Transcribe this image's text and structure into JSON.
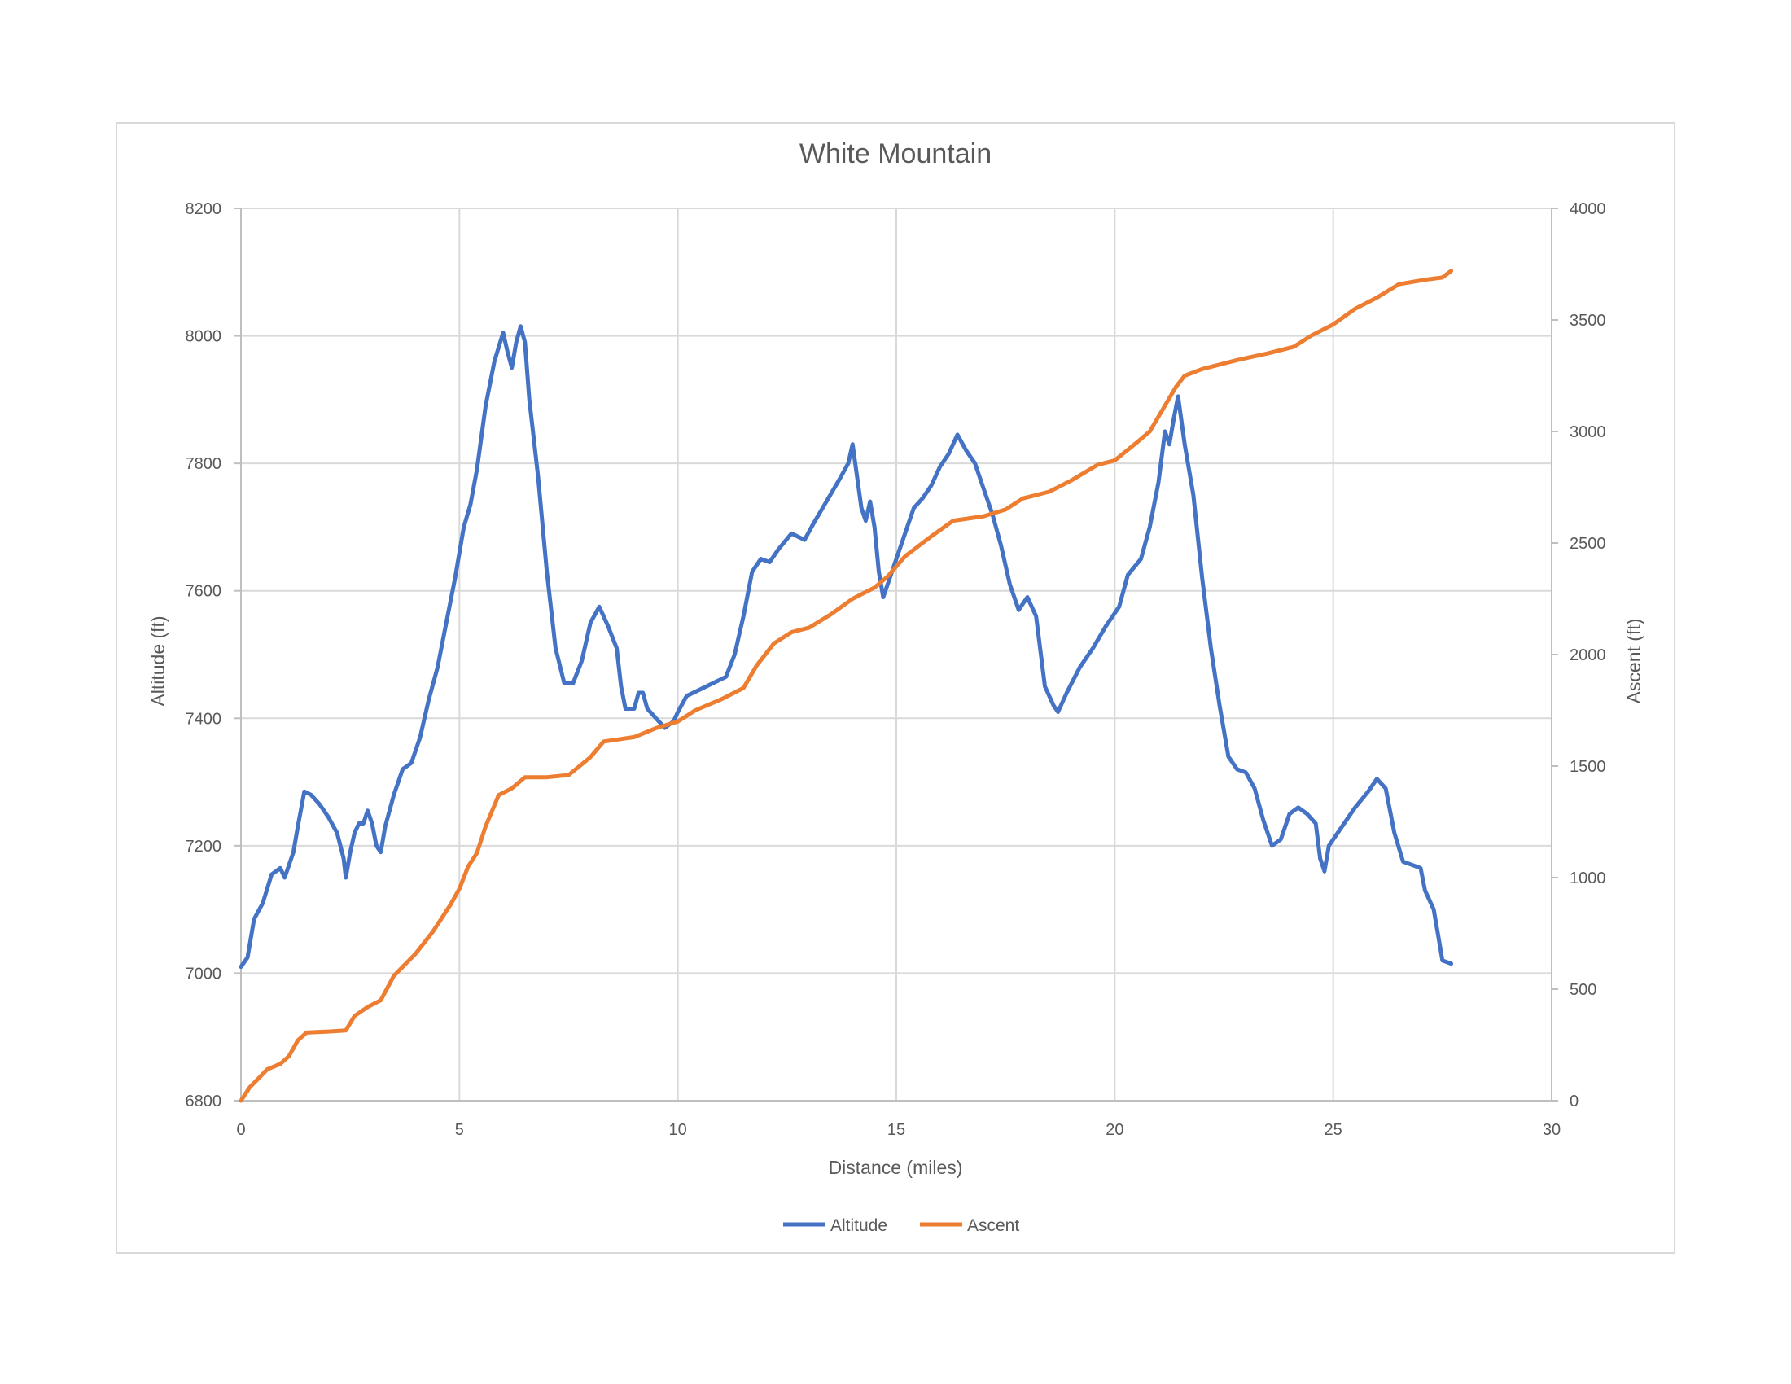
{
  "chart_data": {
    "type": "line",
    "title": "White Mountain",
    "xlabel": "Distance (miles)",
    "ylabel": "Altitude (ft)",
    "y2label": "Ascent (ft)",
    "xlim": [
      0,
      30
    ],
    "ylim": [
      6800,
      8200
    ],
    "y2lim": [
      0,
      4000
    ],
    "xticks": [
      "0",
      "5",
      "10",
      "15",
      "20",
      "25",
      "30"
    ],
    "yticks": [
      "6800",
      "7000",
      "7200",
      "7400",
      "7600",
      "7800",
      "8000",
      "8200"
    ],
    "y2ticks": [
      "0",
      "500",
      "1000",
      "1500",
      "2000",
      "2500",
      "3000",
      "3500",
      "4000"
    ],
    "grid": true,
    "legend_position": "bottom",
    "series": [
      {
        "name": "Altitude",
        "axis": "left",
        "color": "#4472C4",
        "points": [
          [
            0,
            7010
          ],
          [
            0.15,
            7025
          ],
          [
            0.3,
            7085
          ],
          [
            0.5,
            7110
          ],
          [
            0.7,
            7155
          ],
          [
            0.9,
            7165
          ],
          [
            1.0,
            7150
          ],
          [
            1.2,
            7190
          ],
          [
            1.3,
            7230
          ],
          [
            1.45,
            7285
          ],
          [
            1.6,
            7280
          ],
          [
            1.8,
            7265
          ],
          [
            2.0,
            7245
          ],
          [
            2.2,
            7220
          ],
          [
            2.35,
            7180
          ],
          [
            2.4,
            7150
          ],
          [
            2.5,
            7190
          ],
          [
            2.6,
            7220
          ],
          [
            2.7,
            7235
          ],
          [
            2.8,
            7235
          ],
          [
            2.9,
            7255
          ],
          [
            3.0,
            7235
          ],
          [
            3.1,
            7200
          ],
          [
            3.2,
            7190
          ],
          [
            3.3,
            7230
          ],
          [
            3.5,
            7280
          ],
          [
            3.7,
            7320
          ],
          [
            3.9,
            7330
          ],
          [
            4.1,
            7370
          ],
          [
            4.3,
            7430
          ],
          [
            4.5,
            7480
          ],
          [
            4.7,
            7550
          ],
          [
            4.9,
            7620
          ],
          [
            5.1,
            7700
          ],
          [
            5.25,
            7735
          ],
          [
            5.4,
            7790
          ],
          [
            5.6,
            7890
          ],
          [
            5.8,
            7960
          ],
          [
            6.0,
            8005
          ],
          [
            6.1,
            7975
          ],
          [
            6.2,
            7950
          ],
          [
            6.3,
            7990
          ],
          [
            6.4,
            8015
          ],
          [
            6.5,
            7990
          ],
          [
            6.6,
            7900
          ],
          [
            6.8,
            7780
          ],
          [
            7.0,
            7630
          ],
          [
            7.2,
            7510
          ],
          [
            7.4,
            7455
          ],
          [
            7.6,
            7455
          ],
          [
            7.8,
            7490
          ],
          [
            8.0,
            7550
          ],
          [
            8.2,
            7575
          ],
          [
            8.4,
            7545
          ],
          [
            8.6,
            7510
          ],
          [
            8.7,
            7450
          ],
          [
            8.8,
            7415
          ],
          [
            9.0,
            7415
          ],
          [
            9.1,
            7440
          ],
          [
            9.2,
            7440
          ],
          [
            9.3,
            7415
          ],
          [
            9.5,
            7400
          ],
          [
            9.7,
            7385
          ],
          [
            9.9,
            7395
          ],
          [
            10.0,
            7410
          ],
          [
            10.2,
            7435
          ],
          [
            10.5,
            7445
          ],
          [
            10.8,
            7455
          ],
          [
            11.1,
            7465
          ],
          [
            11.3,
            7500
          ],
          [
            11.5,
            7560
          ],
          [
            11.7,
            7630
          ],
          [
            11.9,
            7650
          ],
          [
            12.1,
            7645
          ],
          [
            12.3,
            7665
          ],
          [
            12.6,
            7690
          ],
          [
            12.9,
            7680
          ],
          [
            13.1,
            7705
          ],
          [
            13.4,
            7740
          ],
          [
            13.7,
            7775
          ],
          [
            13.9,
            7800
          ],
          [
            14.0,
            7830
          ],
          [
            14.1,
            7780
          ],
          [
            14.2,
            7730
          ],
          [
            14.3,
            7710
          ],
          [
            14.4,
            7740
          ],
          [
            14.5,
            7700
          ],
          [
            14.6,
            7630
          ],
          [
            14.7,
            7590
          ],
          [
            14.8,
            7610
          ],
          [
            15.0,
            7650
          ],
          [
            15.2,
            7690
          ],
          [
            15.4,
            7730
          ],
          [
            15.6,
            7745
          ],
          [
            15.8,
            7765
          ],
          [
            16.0,
            7795
          ],
          [
            16.2,
            7815
          ],
          [
            16.4,
            7845
          ],
          [
            16.6,
            7820
          ],
          [
            16.8,
            7800
          ],
          [
            17.0,
            7760
          ],
          [
            17.2,
            7720
          ],
          [
            17.4,
            7670
          ],
          [
            17.6,
            7610
          ],
          [
            17.8,
            7570
          ],
          [
            18.0,
            7590
          ],
          [
            18.2,
            7560
          ],
          [
            18.4,
            7450
          ],
          [
            18.6,
            7420
          ],
          [
            18.7,
            7410
          ],
          [
            18.9,
            7440
          ],
          [
            19.2,
            7480
          ],
          [
            19.5,
            7510
          ],
          [
            19.8,
            7545
          ],
          [
            20.1,
            7575
          ],
          [
            20.3,
            7625
          ],
          [
            20.6,
            7650
          ],
          [
            20.8,
            7700
          ],
          [
            21.0,
            7770
          ],
          [
            21.15,
            7850
          ],
          [
            21.25,
            7830
          ],
          [
            21.35,
            7870
          ],
          [
            21.45,
            7905
          ],
          [
            21.6,
            7830
          ],
          [
            21.8,
            7750
          ],
          [
            22.0,
            7620
          ],
          [
            22.2,
            7510
          ],
          [
            22.4,
            7420
          ],
          [
            22.6,
            7340
          ],
          [
            22.8,
            7320
          ],
          [
            23.0,
            7315
          ],
          [
            23.2,
            7290
          ],
          [
            23.4,
            7240
          ],
          [
            23.6,
            7200
          ],
          [
            23.8,
            7210
          ],
          [
            24.0,
            7250
          ],
          [
            24.2,
            7260
          ],
          [
            24.4,
            7250
          ],
          [
            24.6,
            7235
          ],
          [
            24.7,
            7180
          ],
          [
            24.8,
            7160
          ],
          [
            24.9,
            7200
          ],
          [
            25.2,
            7230
          ],
          [
            25.5,
            7260
          ],
          [
            25.8,
            7285
          ],
          [
            26.0,
            7305
          ],
          [
            26.2,
            7290
          ],
          [
            26.4,
            7220
          ],
          [
            26.6,
            7175
          ],
          [
            26.8,
            7170
          ],
          [
            27.0,
            7165
          ],
          [
            27.1,
            7130
          ],
          [
            27.3,
            7100
          ],
          [
            27.4,
            7060
          ],
          [
            27.5,
            7020
          ],
          [
            27.7,
            7015
          ]
        ]
      },
      {
        "name": "Ascent",
        "axis": "right",
        "color": "#ED7D31",
        "points": [
          [
            0,
            0
          ],
          [
            0.2,
            60
          ],
          [
            0.4,
            100
          ],
          [
            0.6,
            140
          ],
          [
            0.9,
            165
          ],
          [
            1.1,
            200
          ],
          [
            1.3,
            270
          ],
          [
            1.5,
            305
          ],
          [
            2.0,
            310
          ],
          [
            2.4,
            315
          ],
          [
            2.6,
            380
          ],
          [
            2.9,
            420
          ],
          [
            3.2,
            450
          ],
          [
            3.5,
            560
          ],
          [
            4.0,
            660
          ],
          [
            4.4,
            760
          ],
          [
            4.8,
            880
          ],
          [
            5.0,
            950
          ],
          [
            5.2,
            1050
          ],
          [
            5.4,
            1110
          ],
          [
            5.6,
            1230
          ],
          [
            5.9,
            1370
          ],
          [
            6.2,
            1400
          ],
          [
            6.5,
            1450
          ],
          [
            7.0,
            1450
          ],
          [
            7.5,
            1460
          ],
          [
            8.0,
            1540
          ],
          [
            8.3,
            1610
          ],
          [
            9.0,
            1630
          ],
          [
            9.5,
            1670
          ],
          [
            10.0,
            1700
          ],
          [
            10.4,
            1750
          ],
          [
            11.0,
            1800
          ],
          [
            11.5,
            1850
          ],
          [
            11.8,
            1950
          ],
          [
            12.2,
            2050
          ],
          [
            12.6,
            2100
          ],
          [
            13.0,
            2120
          ],
          [
            13.5,
            2180
          ],
          [
            14.0,
            2250
          ],
          [
            14.5,
            2300
          ],
          [
            14.8,
            2350
          ],
          [
            15.2,
            2440
          ],
          [
            15.8,
            2530
          ],
          [
            16.3,
            2600
          ],
          [
            17.0,
            2620
          ],
          [
            17.5,
            2650
          ],
          [
            17.9,
            2700
          ],
          [
            18.5,
            2730
          ],
          [
            19.0,
            2780
          ],
          [
            19.6,
            2850
          ],
          [
            20.0,
            2870
          ],
          [
            20.5,
            2950
          ],
          [
            20.8,
            3000
          ],
          [
            21.1,
            3100
          ],
          [
            21.4,
            3200
          ],
          [
            21.6,
            3250
          ],
          [
            22.0,
            3280
          ],
          [
            22.8,
            3320
          ],
          [
            23.5,
            3350
          ],
          [
            24.1,
            3380
          ],
          [
            24.5,
            3430
          ],
          [
            25.0,
            3480
          ],
          [
            25.5,
            3550
          ],
          [
            26.0,
            3600
          ],
          [
            26.5,
            3660
          ],
          [
            27.1,
            3680
          ],
          [
            27.5,
            3690
          ],
          [
            27.7,
            3720
          ]
        ]
      }
    ]
  }
}
